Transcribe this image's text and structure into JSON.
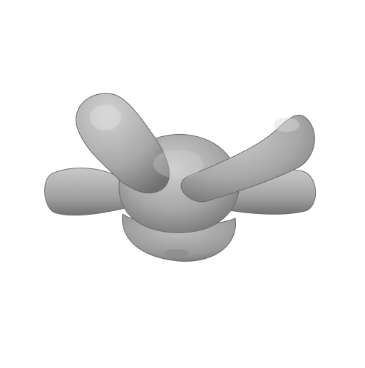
{
  "scene": {
    "subject": "3d-rendered-blob-shape",
    "background_color": "#ffffff",
    "surface_color": "#a4a4a4"
  }
}
